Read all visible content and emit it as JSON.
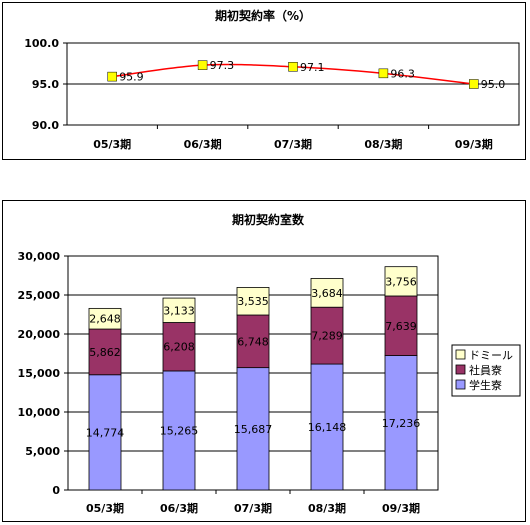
{
  "chart_data": [
    {
      "type": "line",
      "title": "期初契約率（%）",
      "categories": [
        "05/3期",
        "06/3期",
        "07/3期",
        "08/3期",
        "09/3期"
      ],
      "series": [
        {
          "values": [
            95.9,
            97.3,
            97.1,
            96.3,
            95.0
          ],
          "data_labels": [
            "95.9",
            "97.3",
            "97.1",
            "96.3",
            "95.0"
          ],
          "line_color": "#ff0000",
          "marker_color": "#ffff00"
        }
      ],
      "ylim": [
        90,
        100
      ],
      "yticks": [
        "90.0",
        "95.0",
        "100.0"
      ],
      "grid": true,
      "plot_background": "#ffffff"
    },
    {
      "type": "bar",
      "stacked": true,
      "title": "期初契約室数",
      "categories": [
        "05/3期",
        "06/3期",
        "07/3期",
        "08/3期",
        "09/3期"
      ],
      "series": [
        {
          "name": "学生寮",
          "values": [
            14774,
            15265,
            15687,
            16148,
            17236
          ],
          "data_labels": [
            "14,774",
            "15,265",
            "15,687",
            "16,148",
            "17,236"
          ],
          "color": "#9999ff"
        },
        {
          "name": "社員寮",
          "values": [
            5862,
            6208,
            6748,
            7289,
            7639
          ],
          "data_labels": [
            "5,862",
            "6,208",
            "6,748",
            "7,289",
            "7,639"
          ],
          "color": "#993366"
        },
        {
          "name": "ドミール",
          "values": [
            2648,
            3133,
            3535,
            3684,
            3756
          ],
          "data_labels": [
            "2,648",
            "3,133",
            "3,535",
            "3,684",
            "3,756"
          ],
          "color": "#ffffcc"
        }
      ],
      "ylim": [
        0,
        30000
      ],
      "yticks": [
        "0",
        "5,000",
        "10,000",
        "15,000",
        "20,000",
        "25,000",
        "30,000"
      ],
      "grid": true,
      "legend": "right"
    }
  ]
}
